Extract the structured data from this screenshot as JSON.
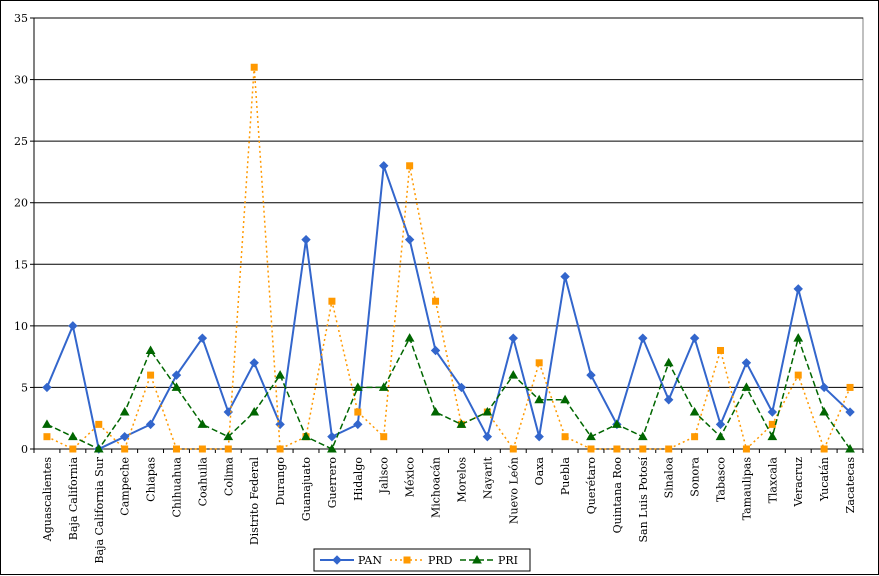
{
  "chart_data": {
    "type": "line",
    "title": "",
    "xlabel": "",
    "ylabel": "",
    "ylim": [
      0,
      35
    ],
    "yticks": [
      0,
      5,
      10,
      15,
      20,
      25,
      30,
      35
    ],
    "grid": true,
    "legend_position": "bottom",
    "categories": [
      "Aguascalientes",
      "Baja California",
      "Baja California Sur",
      "Campeche",
      "Chiapas",
      "Chihuahua",
      "Coahuila",
      "Colima",
      "Distrito Federal",
      "Durango",
      "Guanajuato",
      "Guerrero",
      "Hidalgo",
      "Jalisco",
      "México",
      "Michoacán",
      "Morelos",
      "Nayarit",
      "Nuevo León",
      "Oaxa",
      "Puebla",
      "Querétaro",
      "Quintana Roo",
      "San Luis Potosí",
      "Sinaloa",
      "Sonora",
      "Tabasco",
      "Tamaulipas",
      "Tlaxcala",
      "Veracruz",
      "Yucatán",
      "Zacatecas"
    ],
    "series": [
      {
        "name": "PAN",
        "color": "#3366CC",
        "marker": "diamond",
        "dash": "solid",
        "values": [
          5,
          10,
          0,
          1,
          2,
          6,
          9,
          3,
          7,
          2,
          17,
          1,
          2,
          23,
          17,
          8,
          5,
          1,
          9,
          1,
          14,
          6,
          2,
          9,
          4,
          9,
          2,
          7,
          3,
          13,
          5,
          3
        ]
      },
      {
        "name": "PRD",
        "color": "#FF9900",
        "marker": "square",
        "dash": "dotted",
        "values": [
          1,
          0,
          2,
          0,
          6,
          0,
          0,
          0,
          31,
          0,
          1,
          12,
          3,
          1,
          23,
          12,
          2,
          3,
          0,
          7,
          1,
          0,
          0,
          0,
          0,
          1,
          8,
          0,
          2,
          6,
          0,
          5
        ]
      },
      {
        "name": "PRI",
        "color": "#006600",
        "marker": "triangle",
        "dash": "dashed",
        "values": [
          2,
          1,
          0,
          3,
          8,
          5,
          2,
          1,
          3,
          6,
          1,
          0,
          5,
          5,
          9,
          3,
          2,
          3,
          6,
          4,
          4,
          1,
          2,
          1,
          7,
          3,
          1,
          5,
          1,
          9,
          3,
          0
        ]
      }
    ]
  }
}
